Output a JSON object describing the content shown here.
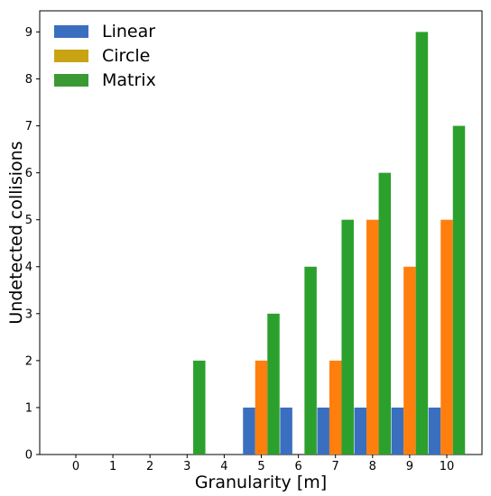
{
  "chart_data": {
    "type": "bar",
    "title": "",
    "xlabel": "Granularity [m]",
    "ylabel": "Undetected collisions",
    "categories": [
      "0",
      "1",
      "2",
      "3",
      "4",
      "5",
      "6",
      "7",
      "8",
      "9",
      "10"
    ],
    "series": [
      {
        "name": "Linear",
        "color": "#3a6fbf",
        "values": [
          0,
          0,
          0,
          0,
          0,
          1,
          1,
          1,
          1,
          1,
          1
        ]
      },
      {
        "name": "Circle",
        "color": "#ff7f0e",
        "legend_color": "#c8a414",
        "values": [
          0,
          0,
          0,
          0,
          0,
          2,
          0,
          2,
          5,
          4,
          5
        ]
      },
      {
        "name": "Matrix",
        "color": "#2ca02c",
        "legend_color": "#3c9a34",
        "values": [
          0,
          0,
          0,
          2,
          0,
          3,
          4,
          5,
          6,
          9,
          7
        ]
      }
    ],
    "ylim": [
      0,
      9.45
    ],
    "yticks": [
      0,
      1,
      2,
      3,
      4,
      5,
      6,
      7,
      8,
      9
    ],
    "grid": false,
    "legend": "top-left"
  }
}
